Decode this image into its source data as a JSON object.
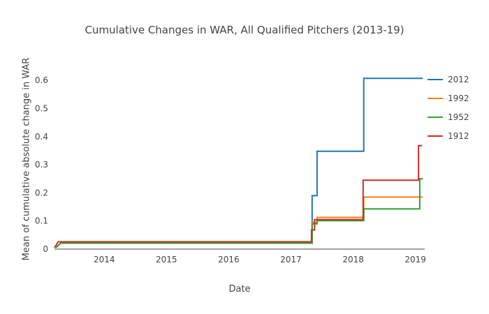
{
  "chart_data": {
    "type": "line",
    "line_shape": "step",
    "title": "Cumulative Changes in WAR, All Qualified Pitchers (2013-19)",
    "xlabel": "Date",
    "ylabel": "Mean of cumulative absolute change in WAR",
    "xlim": [
      2013.2,
      2019.15
    ],
    "ylim": [
      0,
      0.65
    ],
    "xticks": [
      "2014",
      "2015",
      "2016",
      "2017",
      "2018",
      "2019"
    ],
    "yticks": [
      "0",
      "0.1",
      "0.2",
      "0.3",
      "0.4",
      "0.5",
      "0.6"
    ],
    "grid": false,
    "legend_position": "top-right-outside",
    "series": [
      {
        "name": "2012",
        "color": "#1f77b4",
        "points": [
          [
            2013.22,
            0.005
          ],
          [
            2013.3,
            0.021
          ],
          [
            2017.34,
            0.021
          ],
          [
            2017.34,
            0.19
          ],
          [
            2017.42,
            0.19
          ],
          [
            2017.42,
            0.348
          ],
          [
            2018.17,
            0.348
          ],
          [
            2018.17,
            0.607
          ],
          [
            2019.12,
            0.607
          ]
        ]
      },
      {
        "name": "1992",
        "color": "#ff7f0e",
        "points": [
          [
            2013.22,
            0.005
          ],
          [
            2013.3,
            0.021
          ],
          [
            2017.34,
            0.021
          ],
          [
            2017.34,
            0.095
          ],
          [
            2017.42,
            0.095
          ],
          [
            2017.42,
            0.113
          ],
          [
            2018.17,
            0.113
          ],
          [
            2018.17,
            0.185
          ],
          [
            2019.12,
            0.185
          ]
        ]
      },
      {
        "name": "1952",
        "color": "#2ca02c",
        "points": [
          [
            2013.22,
            0.005
          ],
          [
            2013.3,
            0.021
          ],
          [
            2017.34,
            0.021
          ],
          [
            2017.34,
            0.09
          ],
          [
            2017.42,
            0.09
          ],
          [
            2017.42,
            0.101
          ],
          [
            2018.17,
            0.101
          ],
          [
            2018.17,
            0.143
          ],
          [
            2019.07,
            0.143
          ],
          [
            2019.07,
            0.25
          ],
          [
            2019.12,
            0.25
          ]
        ]
      },
      {
        "name": "1912",
        "color": "#d62728",
        "points": [
          [
            2013.2,
            0.005
          ],
          [
            2013.26,
            0.026
          ],
          [
            2017.33,
            0.026
          ],
          [
            2017.33,
            0.068
          ],
          [
            2017.38,
            0.068
          ],
          [
            2017.38,
            0.105
          ],
          [
            2018.16,
            0.105
          ],
          [
            2018.16,
            0.245
          ],
          [
            2019.05,
            0.245
          ],
          [
            2019.05,
            0.368
          ],
          [
            2019.11,
            0.368
          ]
        ]
      }
    ]
  }
}
